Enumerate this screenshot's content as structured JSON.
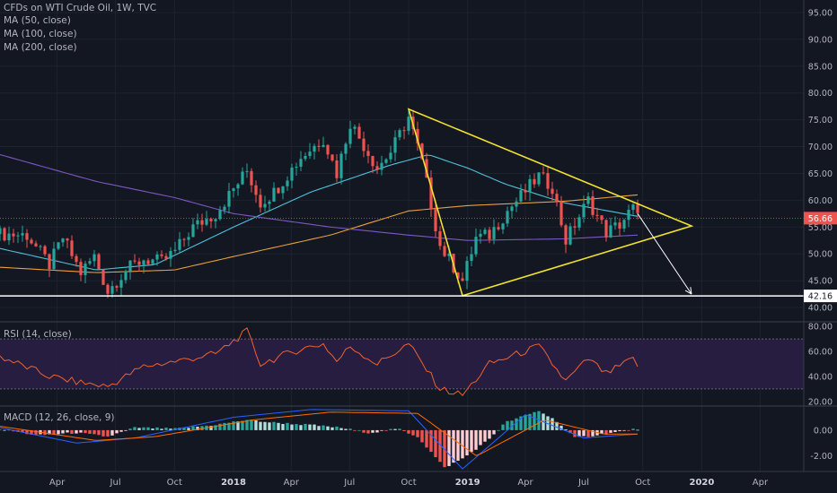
{
  "header": {
    "title": "CFDs on WTI Crude Oil, 1W, TVC",
    "indicators": [
      "MA (50, close)",
      "MA (100, close)",
      "MA (200, close)"
    ]
  },
  "rsi_label": "RSI (14, close)",
  "macd_label": "MACD (12, 26, close, 9)",
  "colors": {
    "background": "#131722",
    "grid": "#1e2230",
    "up": "#26a69a",
    "down": "#ef5350",
    "ma50": "#4fc1d9",
    "ma100": "#e8a13a",
    "ma200": "#7e57c2",
    "triangle": "#f0e130",
    "rsi": "#f0622f",
    "rsi_band": "#2a1f45",
    "macd_line": "#2962ff",
    "signal_line": "#ff6d00"
  },
  "chart_data": [
    {
      "type": "candlestick",
      "name": "price",
      "y_ticks": [
        "95.00",
        "90.00",
        "85.00",
        "80.00",
        "75.00",
        "70.00",
        "65.00",
        "60.00",
        "55.00",
        "50.00",
        "45.00",
        "40.00"
      ],
      "ylim": [
        37.5,
        97
      ],
      "x_ticks": [
        "Apr",
        "Jul",
        "Oct",
        "2018",
        "Apr",
        "Jul",
        "Oct",
        "2019",
        "Apr",
        "Jul",
        "Oct",
        "2020",
        "Apr"
      ],
      "x_tick_dates": [
        "2017-04-01",
        "2017-07-01",
        "2017-10-01",
        "2018-01-01",
        "2018-04-01",
        "2018-07-01",
        "2018-10-01",
        "2019-01-01",
        "2019-04-01",
        "2019-07-01",
        "2019-10-01",
        "2020-01-01",
        "2020-04-01"
      ],
      "x_range": [
        "2017-01-02",
        "2020-06-08"
      ],
      "current_price": "56.66",
      "support_level": "42.16",
      "anchors": [
        {
          "date": "2017-01-02",
          "price": 53.7
        },
        {
          "date": "2017-02-13",
          "price": 53.5
        },
        {
          "date": "2017-03-20",
          "price": 48.0
        },
        {
          "date": "2017-04-10",
          "price": 53.0
        },
        {
          "date": "2017-05-08",
          "price": 46.5
        },
        {
          "date": "2017-05-29",
          "price": 49.5
        },
        {
          "date": "2017-06-19",
          "price": 43.0
        },
        {
          "date": "2017-07-17",
          "price": 47.0
        },
        {
          "date": "2017-08-14",
          "price": 49.0
        },
        {
          "date": "2017-09-11",
          "price": 48.5
        },
        {
          "date": "2017-10-02",
          "price": 50.5
        },
        {
          "date": "2017-10-30",
          "price": 55.0
        },
        {
          "date": "2017-12-04",
          "price": 57.5
        },
        {
          "date": "2018-01-22",
          "price": 65.5
        },
        {
          "date": "2018-02-12",
          "price": 59.5
        },
        {
          "date": "2018-03-05",
          "price": 61.5
        },
        {
          "date": "2018-04-16",
          "price": 68.0
        },
        {
          "date": "2018-05-21",
          "price": 71.5
        },
        {
          "date": "2018-06-11",
          "price": 65.0
        },
        {
          "date": "2018-07-02",
          "price": 74.5
        },
        {
          "date": "2018-08-13",
          "price": 66.0
        },
        {
          "date": "2018-09-03",
          "price": 69.0
        },
        {
          "date": "2018-10-01",
          "price": 75.5
        },
        {
          "date": "2018-10-22",
          "price": 67.0
        },
        {
          "date": "2018-11-19",
          "price": 51.5
        },
        {
          "date": "2018-12-24",
          "price": 45.0
        },
        {
          "date": "2019-01-14",
          "price": 53.0
        },
        {
          "date": "2019-02-04",
          "price": 53.5
        },
        {
          "date": "2019-03-04",
          "price": 58.0
        },
        {
          "date": "2019-04-22",
          "price": 64.5
        },
        {
          "date": "2019-05-13",
          "price": 62.5
        },
        {
          "date": "2019-06-03",
          "price": 52.5
        },
        {
          "date": "2019-07-08",
          "price": 60.0
        },
        {
          "date": "2019-08-05",
          "price": 54.0
        },
        {
          "date": "2019-08-26",
          "price": 55.5
        },
        {
          "date": "2019-09-16",
          "price": 58.5
        },
        {
          "date": "2019-09-23",
          "price": 56.66
        }
      ],
      "moving_averages": {
        "ma50": [
          {
            "date": "2017-01-02",
            "price": 51.0
          },
          {
            "date": "2017-06-01",
            "price": 47.0
          },
          {
            "date": "2017-09-01",
            "price": 48.0
          },
          {
            "date": "2018-01-01",
            "price": 55.0
          },
          {
            "date": "2018-05-01",
            "price": 61.5
          },
          {
            "date": "2018-09-01",
            "price": 66.5
          },
          {
            "date": "2018-11-01",
            "price": 68.5
          },
          {
            "date": "2019-01-01",
            "price": 66.0
          },
          {
            "date": "2019-03-01",
            "price": 63.0
          },
          {
            "date": "2019-06-01",
            "price": 59.5
          },
          {
            "date": "2019-09-23",
            "price": 57.0
          }
        ],
        "ma100": [
          {
            "date": "2017-01-02",
            "price": 47.5
          },
          {
            "date": "2017-06-01",
            "price": 46.5
          },
          {
            "date": "2017-10-01",
            "price": 47.0
          },
          {
            "date": "2018-01-01",
            "price": 49.5
          },
          {
            "date": "2018-06-01",
            "price": 53.5
          },
          {
            "date": "2018-10-01",
            "price": 58.0
          },
          {
            "date": "2019-01-01",
            "price": 59.0
          },
          {
            "date": "2019-06-01",
            "price": 59.8
          },
          {
            "date": "2019-09-23",
            "price": 61.0
          }
        ],
        "ma200": [
          {
            "date": "2017-01-02",
            "price": 68.5
          },
          {
            "date": "2017-06-01",
            "price": 63.5
          },
          {
            "date": "2017-10-01",
            "price": 60.5
          },
          {
            "date": "2018-01-01",
            "price": 57.5
          },
          {
            "date": "2018-06-01",
            "price": 55.0
          },
          {
            "date": "2018-10-01",
            "price": 53.5
          },
          {
            "date": "2019-01-01",
            "price": 52.5
          },
          {
            "date": "2019-06-01",
            "price": 52.8
          },
          {
            "date": "2019-09-23",
            "price": 53.5
          }
        ]
      },
      "triangle": [
        {
          "date": "2018-10-01",
          "price": 77.0
        },
        {
          "date": "2019-12-16",
          "price": 55.2
        },
        {
          "date": "2018-12-24",
          "price": 42.2
        }
      ],
      "projection_arrow": [
        {
          "date": "2019-09-23",
          "price": 57.5
        },
        {
          "date": "2019-12-16",
          "price": 42.5
        }
      ]
    },
    {
      "type": "line",
      "name": "RSI",
      "y_ticks": [
        "80.00",
        "60.00",
        "40.00",
        "20.00"
      ],
      "ylim": [
        17,
        83
      ],
      "band": [
        30,
        70
      ],
      "anchors": [
        {
          "date": "2017-01-02",
          "price": 56
        },
        {
          "date": "2017-03-20",
          "price": 40
        },
        {
          "date": "2017-05-08",
          "price": 35
        },
        {
          "date": "2017-06-19",
          "price": 32
        },
        {
          "date": "2017-08-14",
          "price": 48
        },
        {
          "date": "2017-10-02",
          "price": 52
        },
        {
          "date": "2017-12-04",
          "price": 58
        },
        {
          "date": "2018-01-22",
          "price": 76
        },
        {
          "date": "2018-02-12",
          "price": 50
        },
        {
          "date": "2018-04-16",
          "price": 62
        },
        {
          "date": "2018-05-21",
          "price": 66
        },
        {
          "date": "2018-06-11",
          "price": 52
        },
        {
          "date": "2018-07-02",
          "price": 64
        },
        {
          "date": "2018-08-13",
          "price": 50
        },
        {
          "date": "2018-10-01",
          "price": 66
        },
        {
          "date": "2018-11-19",
          "price": 30
        },
        {
          "date": "2018-12-24",
          "price": 25
        },
        {
          "date": "2019-02-04",
          "price": 50
        },
        {
          "date": "2019-04-22",
          "price": 64
        },
        {
          "date": "2019-06-03",
          "price": 36
        },
        {
          "date": "2019-07-08",
          "price": 54
        },
        {
          "date": "2019-08-05",
          "price": 42
        },
        {
          "date": "2019-09-16",
          "price": 54
        },
        {
          "date": "2019-09-23",
          "price": 49
        }
      ]
    },
    {
      "type": "bar",
      "name": "MACD",
      "y_ticks": [
        "0.00",
        "-2.00"
      ],
      "ylim": [
        -3.2,
        1.8
      ],
      "histogram_anchors": [
        {
          "date": "2017-01-02",
          "price": 0.1
        },
        {
          "date": "2017-03-01",
          "price": -0.4
        },
        {
          "date": "2017-05-01",
          "price": -0.2
        },
        {
          "date": "2017-06-19",
          "price": -0.5
        },
        {
          "date": "2017-08-01",
          "price": 0.2
        },
        {
          "date": "2017-10-01",
          "price": 0.1
        },
        {
          "date": "2017-12-01",
          "price": 0.4
        },
        {
          "date": "2018-01-22",
          "price": 0.8
        },
        {
          "date": "2018-03-01",
          "price": 0.6
        },
        {
          "date": "2018-05-01",
          "price": 0.4
        },
        {
          "date": "2018-06-15",
          "price": 0.2
        },
        {
          "date": "2018-08-01",
          "price": -0.2
        },
        {
          "date": "2018-09-15",
          "price": 0.1
        },
        {
          "date": "2018-10-15",
          "price": -0.5
        },
        {
          "date": "2018-11-26",
          "price": -2.9
        },
        {
          "date": "2018-12-24",
          "price": -2.2
        },
        {
          "date": "2019-02-01",
          "price": -0.8
        },
        {
          "date": "2019-03-01",
          "price": 0.6
        },
        {
          "date": "2019-04-22",
          "price": 1.5
        },
        {
          "date": "2019-05-20",
          "price": 0.7
        },
        {
          "date": "2019-06-17",
          "price": -0.6
        },
        {
          "date": "2019-08-01",
          "price": -0.3
        },
        {
          "date": "2019-09-23",
          "price": 0.1
        }
      ],
      "macd_line_anchors": [
        {
          "date": "2017-01-02",
          "price": 0.2
        },
        {
          "date": "2017-05-01",
          "price": -1.0
        },
        {
          "date": "2017-08-01",
          "price": -0.6
        },
        {
          "date": "2018-01-01",
          "price": 1.0
        },
        {
          "date": "2018-05-01",
          "price": 1.6
        },
        {
          "date": "2018-10-01",
          "price": 1.5
        },
        {
          "date": "2018-12-24",
          "price": -3.0
        },
        {
          "date": "2019-04-01",
          "price": 1.2
        },
        {
          "date": "2019-07-01",
          "price": -0.6
        },
        {
          "date": "2019-09-23",
          "price": -0.3
        }
      ],
      "signal_line_anchors": [
        {
          "date": "2017-01-02",
          "price": 0.3
        },
        {
          "date": "2017-06-01",
          "price": -0.8
        },
        {
          "date": "2017-09-01",
          "price": -0.5
        },
        {
          "date": "2018-02-01",
          "price": 0.8
        },
        {
          "date": "2018-06-01",
          "price": 1.4
        },
        {
          "date": "2018-10-15",
          "price": 1.3
        },
        {
          "date": "2019-01-15",
          "price": -2.0
        },
        {
          "date": "2019-05-01",
          "price": 0.8
        },
        {
          "date": "2019-08-01",
          "price": -0.3
        },
        {
          "date": "2019-09-23",
          "price": -0.3
        }
      ]
    }
  ]
}
